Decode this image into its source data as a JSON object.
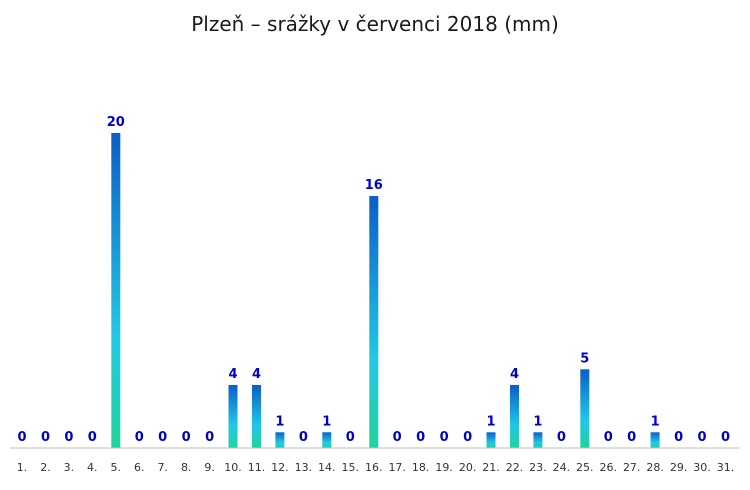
{
  "chart_data": {
    "type": "bar",
    "title": "Plzeň – srážky v červenci 2018 (mm)",
    "xlabel": "",
    "ylabel": "",
    "ylim": [
      0,
      20
    ],
    "grid": false,
    "categories": [
      "1.",
      "2.",
      "3.",
      "4.",
      "5.",
      "6.",
      "7.",
      "8.",
      "9.",
      "10.",
      "11.",
      "12.",
      "13.",
      "14.",
      "15.",
      "16.",
      "17.",
      "18.",
      "19.",
      "20.",
      "21.",
      "22.",
      "23.",
      "24.",
      "25.",
      "26.",
      "27.",
      "28.",
      "29.",
      "30.",
      "31."
    ],
    "values": [
      0,
      0,
      0,
      0,
      20,
      0,
      0,
      0,
      0,
      4,
      4,
      1,
      0,
      1,
      0,
      16,
      0,
      0,
      0,
      0,
      1,
      4,
      1,
      0,
      5,
      0,
      0,
      1,
      0,
      0,
      0
    ],
    "colors": {
      "bar_top": "#0a5fc8",
      "bar_mid": "#22c8e6",
      "bar_bottom": "#1fd39a",
      "label": "#0000cc",
      "axis": "#bfbfbf"
    }
  }
}
